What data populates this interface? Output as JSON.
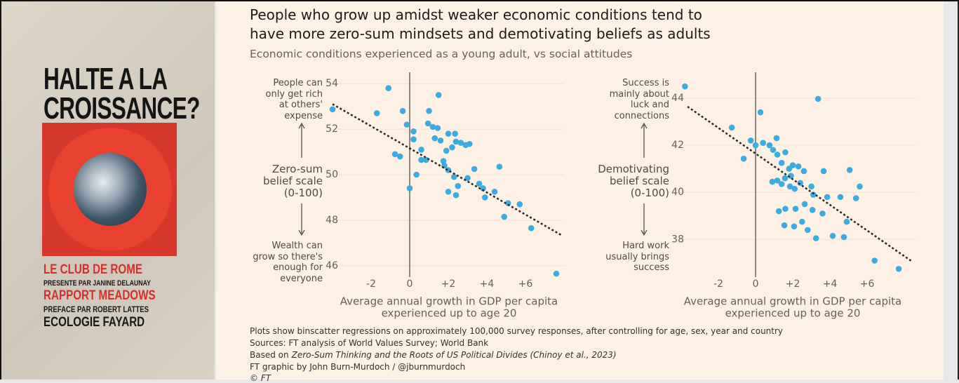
{
  "cover": {
    "title_lines": [
      "HALTE A LA",
      "CROISSANCE?"
    ],
    "lines": [
      {
        "text": "LE CLUB DE ROME",
        "color": "#d4302a",
        "size": 19
      },
      {
        "text": "PRESENTE PAR JANINE DELAUNAY",
        "color": "#1a1a1a",
        "size": 11
      },
      {
        "text": "RAPPORT MEADOWS",
        "color": "#d4302a",
        "size": 19
      },
      {
        "text": "PREFACE PAR ROBERT LATTES",
        "color": "#1a1a1a",
        "size": 12
      },
      {
        "text": "ECOLOGIE FAYARD",
        "color": "#1a1a1a",
        "size": 19
      }
    ]
  },
  "header": {
    "title_lines": [
      "People who grow up amidst weaker economic conditions tend to",
      "have more zero-sum mindsets and demotivating beliefs as adults"
    ],
    "subtitle": "Economic conditions experienced as a young adult, vs social attitudes"
  },
  "chart_data": [
    {
      "type": "scatter",
      "y_label_top": [
        "People can",
        "only get rich",
        "at others'",
        "expense"
      ],
      "y_label": [
        "Zero-sum",
        "belief scale",
        "(0-100)"
      ],
      "y_label_bottom": [
        "Wealth can",
        "grow so there's",
        "enough for",
        "everyone"
      ],
      "x_label_lines": [
        "Average annual growth in GDP per capita",
        "experienced up to age 20"
      ],
      "color": "#3eaadf",
      "grid": true,
      "xlim": [
        -4.2,
        8
      ],
      "ylim": [
        45.5,
        54.5
      ],
      "xticks": [
        -2,
        0,
        {
          "value": 2,
          "label": "+2"
        },
        {
          "value": 4,
          "label": "+4"
        },
        {
          "value": 6,
          "label": "+6"
        }
      ],
      "yticks": [
        46,
        48,
        50,
        52,
        54
      ],
      "x": [
        -4.0,
        -1.7,
        -1.1,
        -0.36,
        -0.15,
        0.2,
        0.2,
        1.0,
        1.5,
        0.95,
        1.2,
        1.45,
        1.3,
        1.6,
        2.0,
        2.35,
        2.4,
        2.2,
        2.65,
        2.9,
        3.1,
        1.9,
        0.6,
        -0.76,
        -0.5,
        0.6,
        0.85,
        1.75,
        1.8,
        2.0,
        2.3,
        2.5,
        0.35,
        0.0,
        3.35,
        3.0,
        3.6,
        3.8,
        2.0,
        2.4,
        3.9,
        4.4,
        4.65,
        4.9,
        5.1,
        5.7,
        6.3,
        7.6
      ],
      "values": [
        52.87,
        52.7,
        53.8,
        52.8,
        52.2,
        51.9,
        51.55,
        52.8,
        53.5,
        52.25,
        52.1,
        52.05,
        51.6,
        51.5,
        51.8,
        51.8,
        51.45,
        51.2,
        51.4,
        51.3,
        51.35,
        51.05,
        51.1,
        50.9,
        50.8,
        50.65,
        50.65,
        50.6,
        50.4,
        50.2,
        49.9,
        49.5,
        50.0,
        49.4,
        50.25,
        49.85,
        49.6,
        49.4,
        49.25,
        49.1,
        49.0,
        49.25,
        50.35,
        48.15,
        48.75,
        48.7,
        47.65,
        45.65
      ],
      "trend_line": {
        "x": [
          -4.0,
          7.85
        ],
        "y": [
          53.1,
          47.35
        ]
      }
    },
    {
      "type": "scatter",
      "y_label_top": [
        "Success is",
        "mainly about",
        "luck and",
        "connections"
      ],
      "y_label": [
        "Demotivating",
        "belief scale",
        "(0-100)"
      ],
      "y_label_bottom": [
        "Hard work",
        "usually brings",
        "success"
      ],
      "x_label_lines": [
        "Average annual growth in GDP per capita",
        "experienced up to age 20"
      ],
      "color": "#3eaadf",
      "grid": true,
      "xlim": [
        -4.04,
        8.6
      ],
      "ylim": [
        36.4,
        45.1
      ],
      "xticks": [
        -2,
        0,
        {
          "value": 2,
          "label": "+2"
        },
        {
          "value": 4,
          "label": "+4"
        },
        {
          "value": 6,
          "label": "+6"
        }
      ],
      "yticks": [
        38,
        40,
        42,
        44
      ],
      "x": [
        -3.8,
        3.36,
        0.26,
        -1.28,
        -0.26,
        0.0,
        0.4,
        -0.64,
        0.75,
        1.13,
        0.94,
        1.17,
        1.6,
        1.4,
        1.8,
        2.0,
        2.3,
        2.6,
        3.66,
        5.06,
        0.9,
        1.17,
        1.4,
        1.58,
        1.9,
        1.85,
        2.1,
        2.4,
        3.0,
        3.1,
        3.85,
        4.56,
        5.6,
        5.4,
        1.25,
        1.6,
        2.15,
        2.64,
        3.06,
        3.6,
        1.55,
        2.07,
        2.5,
        2.8,
        3.25,
        4.15,
        4.75,
        4.9,
        6.4,
        7.7
      ],
      "values": [
        44.5,
        43.97,
        43.4,
        42.75,
        42.2,
        42.0,
        42.1,
        41.43,
        42.0,
        42.3,
        41.8,
        41.6,
        41.7,
        41.25,
        41.0,
        41.15,
        41.1,
        40.9,
        40.9,
        40.95,
        40.45,
        40.5,
        40.35,
        40.6,
        40.7,
        40.25,
        40.15,
        40.4,
        40.25,
        39.9,
        39.8,
        39.8,
        40.25,
        39.75,
        39.2,
        39.3,
        39.3,
        39.5,
        39.25,
        39.1,
        38.6,
        38.55,
        38.75,
        38.4,
        38.05,
        38.15,
        38.1,
        38.75,
        37.1,
        36.75
      ],
      "trend_line": {
        "x": [
          -3.66,
          8.4
        ],
        "y": [
          43.64,
          37.07
        ]
      }
    }
  ],
  "footer": {
    "lines": [
      "Plots show binscatter regressions on approximately 100,000 survey responses, after controlling for age, sex, year and country",
      "Sources: FT analysis of World Values Survey; World Bank"
    ],
    "based_on": {
      "prefix": "Based on",
      "title": "Zero-Sum Thinking and the Roots of US Political Divides (Chinoy et al., 2023)"
    },
    "credit": "FT graphic by John Burn-Murdoch / @jburnmurdoch",
    "copyright": "© FT"
  }
}
